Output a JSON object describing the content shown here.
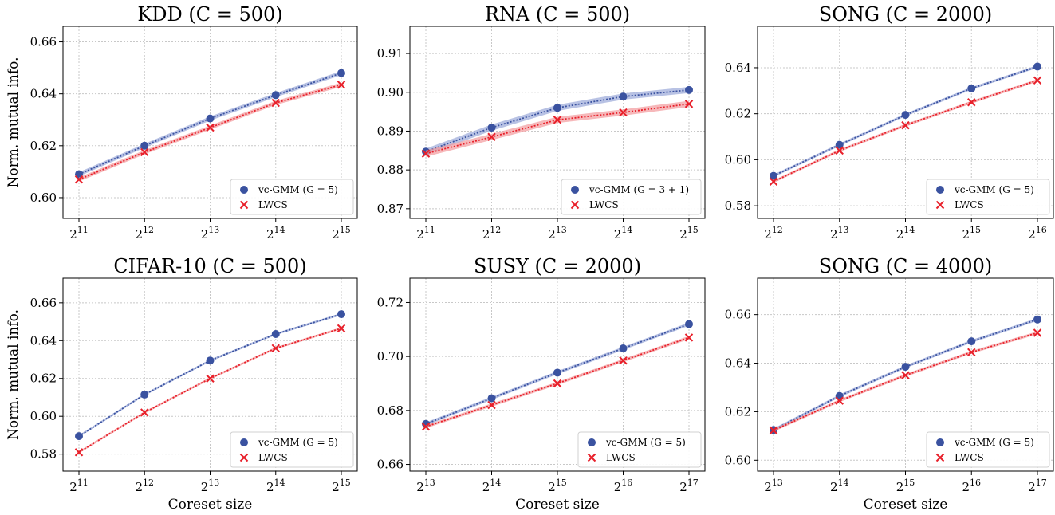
{
  "colors": {
    "vc": "#3a52a0",
    "lwcs": "#e8202a",
    "vc_band": "#9aa8d8",
    "lwcs_band": "#f29a9c"
  },
  "marker_types": {
    "vc": "circle",
    "lwcs": "x"
  },
  "chart_data": [
    {
      "type": "line",
      "title": "KDD (C = 500)",
      "xlabel": "",
      "ylabel": "Norm. mutual info.",
      "x_scale": "log2",
      "x_ticks": [
        "2^11",
        "2^12",
        "2^13",
        "2^14",
        "2^15"
      ],
      "y_ticks": [
        "0.60",
        "0.62",
        "0.64",
        "0.66"
      ],
      "ylim": [
        0.592,
        0.666
      ],
      "grid": true,
      "legend_position": "lower-right",
      "series": [
        {
          "name": "vc-GMM (G = 5)",
          "values": [
            0.609,
            0.62,
            0.6305,
            0.6395,
            0.648
          ],
          "band": 0.0008
        },
        {
          "name": "LWCS",
          "values": [
            0.607,
            0.6175,
            0.627,
            0.6365,
            0.6435
          ],
          "band": 0.0008
        }
      ]
    },
    {
      "type": "line",
      "title": "RNA (C = 500)",
      "xlabel": "",
      "ylabel": "",
      "x_scale": "log2",
      "x_ticks": [
        "2^11",
        "2^12",
        "2^13",
        "2^14",
        "2^15"
      ],
      "y_ticks": [
        "0.87",
        "0.88",
        "0.89",
        "0.90",
        "0.91"
      ],
      "ylim": [
        0.8675,
        0.917
      ],
      "grid": true,
      "legend_position": "lower-right",
      "series": [
        {
          "name": "vc-GMM (G = 3 + 1)",
          "values": [
            0.8847,
            0.8909,
            0.896,
            0.8989,
            0.9006
          ],
          "band": 0.0008
        },
        {
          "name": "LWCS",
          "values": [
            0.8842,
            0.8885,
            0.8929,
            0.8948,
            0.897
          ],
          "band": 0.0008
        }
      ]
    },
    {
      "type": "line",
      "title": "SONG (C = 2000)",
      "xlabel": "",
      "ylabel": "",
      "x_scale": "log2",
      "x_ticks": [
        "2^12",
        "2^13",
        "2^14",
        "2^15",
        "2^16"
      ],
      "y_ticks": [
        "0.58",
        "0.60",
        "0.62",
        "0.64"
      ],
      "ylim": [
        0.5745,
        0.658
      ],
      "grid": true,
      "legend_position": "lower-right",
      "series": [
        {
          "name": "vc-GMM (G = 5)",
          "values": [
            0.593,
            0.6065,
            0.6195,
            0.631,
            0.6405
          ],
          "band": 0.0006
        },
        {
          "name": "LWCS",
          "values": [
            0.5905,
            0.604,
            0.615,
            0.625,
            0.6345
          ],
          "band": 0.0006
        }
      ]
    },
    {
      "type": "line",
      "title": "CIFAR-10 (C = 500)",
      "xlabel": "Coreset size",
      "ylabel": "Norm. mutual info.",
      "x_scale": "log2",
      "x_ticks": [
        "2^11",
        "2^12",
        "2^13",
        "2^14",
        "2^15"
      ],
      "y_ticks": [
        "0.58",
        "0.60",
        "0.62",
        "0.64",
        "0.66"
      ],
      "ylim": [
        0.571,
        0.673
      ],
      "grid": true,
      "legend_position": "lower-right",
      "series": [
        {
          "name": "vc-GMM (G = 5)",
          "values": [
            0.5895,
            0.6115,
            0.6295,
            0.6435,
            0.654
          ],
          "band": 0.0006
        },
        {
          "name": "LWCS",
          "values": [
            0.581,
            0.602,
            0.62,
            0.636,
            0.6465
          ],
          "band": 0.0006
        }
      ]
    },
    {
      "type": "line",
      "title": "SUSY (C = 2000)",
      "xlabel": "Coreset size",
      "ylabel": "",
      "x_scale": "log2",
      "x_ticks": [
        "2^13",
        "2^14",
        "2^15",
        "2^16",
        "2^17"
      ],
      "y_ticks": [
        "0.66",
        "0.68",
        "0.70",
        "0.72"
      ],
      "ylim": [
        0.6575,
        0.729
      ],
      "grid": true,
      "legend_position": "lower-right",
      "series": [
        {
          "name": "vc-GMM (G = 5)",
          "values": [
            0.675,
            0.6845,
            0.694,
            0.703,
            0.712
          ],
          "band": 0.0006
        },
        {
          "name": "LWCS",
          "values": [
            0.674,
            0.682,
            0.69,
            0.6985,
            0.707
          ],
          "band": 0.0006
        }
      ]
    },
    {
      "type": "line",
      "title": "SONG (C = 4000)",
      "xlabel": "Coreset size",
      "ylabel": "",
      "x_scale": "log2",
      "x_ticks": [
        "2^13",
        "2^14",
        "2^15",
        "2^16",
        "2^17"
      ],
      "y_ticks": [
        "0.60",
        "0.62",
        "0.64",
        "0.66"
      ],
      "ylim": [
        0.5955,
        0.675
      ],
      "grid": true,
      "legend_position": "lower-right",
      "series": [
        {
          "name": "vc-GMM (G = 5)",
          "values": [
            0.6125,
            0.6265,
            0.6385,
            0.649,
            0.658
          ],
          "band": 0.0006
        },
        {
          "name": "LWCS",
          "values": [
            0.6123,
            0.6245,
            0.635,
            0.6445,
            0.6525
          ],
          "band": 0.0006
        }
      ]
    }
  ]
}
